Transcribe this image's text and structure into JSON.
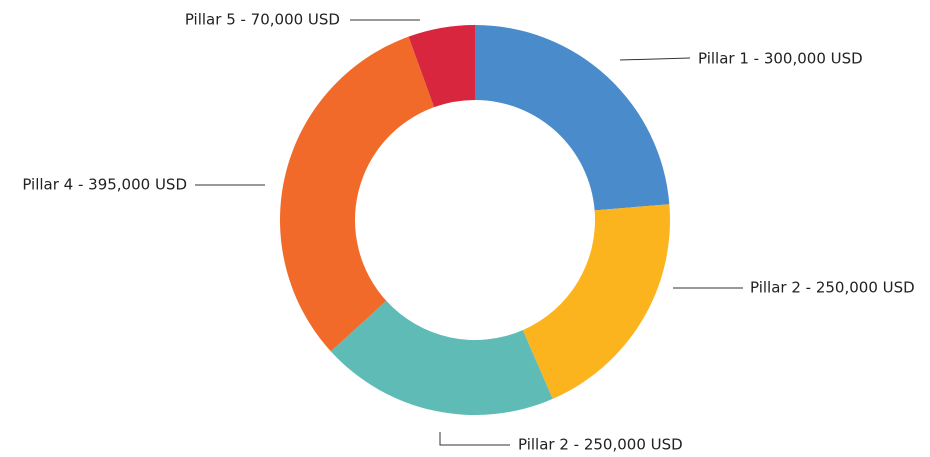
{
  "chart_data": {
    "type": "donut",
    "labels": [
      "Pillar 1 - 300,000 USD",
      "Pillar 2 - 250,000 USD",
      "Pillar 2 - 250,000 USD",
      "Pillar 4 - 395,000 USD",
      "Pillar 5 - 70,000 USD"
    ],
    "values": [
      300000,
      250000,
      250000,
      395000,
      70000
    ],
    "colors": [
      "#4a8ccb",
      "#fbb41e",
      "#5ebbb5",
      "#f26a2a",
      "#d7263d"
    ]
  }
}
